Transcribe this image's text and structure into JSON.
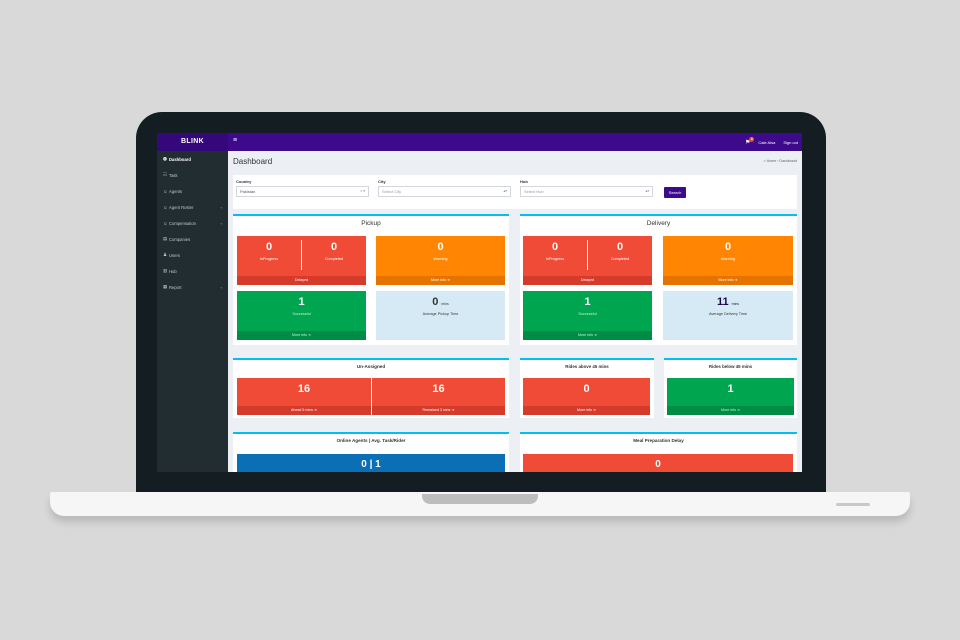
{
  "app": {
    "brand": "BLINK",
    "menu_glyph": "≡",
    "notification_count": "8",
    "user_name": "Cale Alsa",
    "signout": "Sign out"
  },
  "sidebar": {
    "items": [
      {
        "label": "Dashboard",
        "icon": "dashboard-icon",
        "glyph": "◍"
      },
      {
        "label": "Task",
        "icon": "task-icon",
        "glyph": "☷"
      },
      {
        "label": "Agents",
        "icon": "agents-icon",
        "glyph": "☺"
      },
      {
        "label": "Agent Roster",
        "icon": "roster-icon",
        "glyph": "☺",
        "caret": "‹"
      },
      {
        "label": "Compensation",
        "icon": "compensation-icon",
        "glyph": "☺",
        "caret": "‹"
      },
      {
        "label": "Companies",
        "icon": "companies-icon",
        "glyph": "▤"
      },
      {
        "label": "Users",
        "icon": "users-icon",
        "glyph": "♟"
      },
      {
        "label": "Hub",
        "icon": "hub-icon",
        "glyph": "▥"
      },
      {
        "label": "Report",
        "icon": "report-icon",
        "glyph": "▦",
        "caret": "‹"
      }
    ]
  },
  "header": {
    "title": "Dashboard",
    "breadcrumb_home": "⌂ Home",
    "breadcrumb_sep": "›",
    "breadcrumb_current": "Dashboard"
  },
  "filters": {
    "country_label": "Country",
    "country_value": "Pakistan",
    "country_arrow": "× ▾",
    "city_label": "City",
    "city_placeholder": "Select City",
    "hub_label": "Hub",
    "hub_placeholder": "Select Hub",
    "select_arrow": "▴▾",
    "search_label": "Search"
  },
  "pickup": {
    "title": "Pickup",
    "in_progress": {
      "value": "0",
      "label": "InProgress"
    },
    "completed": {
      "value": "0",
      "label": "Completed"
    },
    "delayed_label": "Delayed",
    "warning": {
      "value": "0",
      "label": "Warning",
      "foot": "More info ➔"
    },
    "successful": {
      "value": "1",
      "label": "Successful",
      "foot": "More info ➔"
    },
    "avg": {
      "value": "0",
      "unit": "mins",
      "label": "Average Pickup Time"
    }
  },
  "delivery": {
    "title": "Delivery",
    "in_progress": {
      "value": "0",
      "label": "InProgress"
    },
    "completed": {
      "value": "0",
      "label": "Completed"
    },
    "delayed_label": "Delayed",
    "warning": {
      "value": "0",
      "label": "Warning",
      "foot": "More info ➔"
    },
    "successful": {
      "value": "1",
      "label": "Successful",
      "foot": "More info ➔"
    },
    "avg": {
      "value": "11",
      "unit": "mins",
      "label": "Average Delivery Time"
    }
  },
  "unassigned": {
    "title": "Un-Assigned",
    "left": {
      "value": "16",
      "foot": "Ahead 5 mins ➔"
    },
    "right": {
      "value": "16",
      "foot": "Remained 3 mins ➔"
    }
  },
  "rides_above": {
    "title": "Rides above 45 mins",
    "value": "0",
    "foot": "More info ➔"
  },
  "rides_below": {
    "title": "Rides below 45 mins",
    "value": "1",
    "foot": "More info ➔"
  },
  "online_agents": {
    "title": "Online Agents | Avg. Task/Rider",
    "value": "0 | 1"
  },
  "meal_delay": {
    "title": "Meal Preparation Delay",
    "value": "0"
  },
  "colors": {
    "topbar": "#3d0a8c",
    "sidebar": "#222d32",
    "red": "#f04b37",
    "orange": "#ff8502",
    "green": "#00a550",
    "light_blue": "#d6eaf5",
    "blue": "#0b6fb6",
    "accent": "#00c0ef"
  }
}
